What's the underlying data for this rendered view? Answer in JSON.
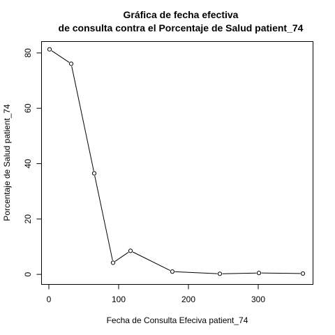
{
  "chart_data": {
    "type": "line",
    "title_line1": "Gráfica de fecha efectiva",
    "title_line2": "de consulta contra el Porcentaje de Salud  patient_74",
    "xlabel": "Fecha de Consulta Efeciva  patient_74",
    "ylabel": "Porcentaje de Salud  patient_74",
    "xlim": [
      -10,
      378
    ],
    "ylim": [
      -3.5,
      84
    ],
    "x_ticks": [
      0,
      100,
      200,
      300
    ],
    "y_ticks": [
      0,
      20,
      40,
      60,
      80
    ],
    "x_tick_labels": [
      "0",
      "100",
      "200",
      "300"
    ],
    "y_tick_labels": [
      "0",
      "20",
      "40",
      "60",
      "80"
    ],
    "grid": false,
    "points": [
      {
        "x": 1,
        "y": 81.3
      },
      {
        "x": 32,
        "y": 76.1
      },
      {
        "x": 65,
        "y": 36.5
      },
      {
        "x": 92,
        "y": 4.2
      },
      {
        "x": 117,
        "y": 8.5
      },
      {
        "x": 177,
        "y": 1.0
      },
      {
        "x": 245,
        "y": 0.2
      },
      {
        "x": 301,
        "y": 0.5
      },
      {
        "x": 364,
        "y": 0.3
      }
    ]
  }
}
